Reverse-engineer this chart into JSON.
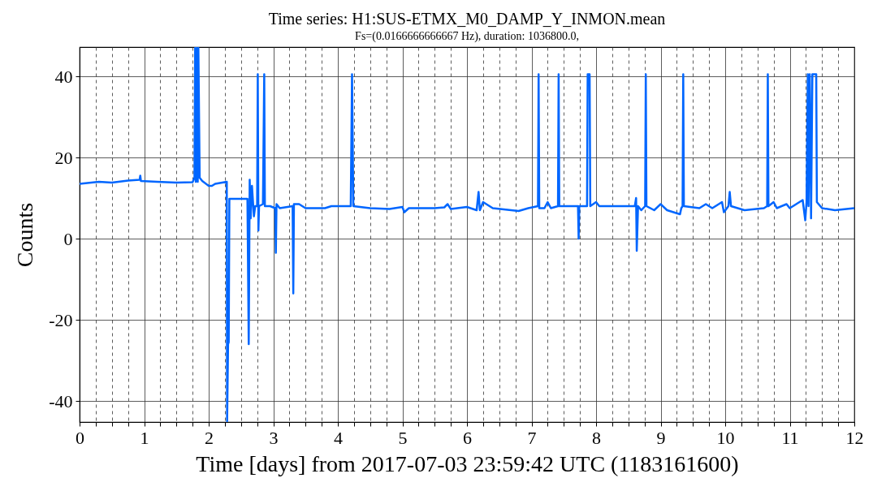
{
  "chart_data": {
    "type": "line",
    "title": "Time series: H1:SUS-ETMX_M0_DAMP_Y_INMON.mean",
    "subtitle": "Fs=(0.0166666666667 Hz), duration: 1036800.0,",
    "xlabel": "Time [days] from 2017-07-03 23:59:42 UTC (1183161600)",
    "ylabel": "Counts",
    "xlim": [
      0,
      12
    ],
    "ylim": [
      -45.2,
      47.2
    ],
    "xticks": [
      0,
      {
        "value": 0.25,
        "label": null
      },
      {
        "value": 0.5,
        "label": null
      },
      {
        "value": 0.75,
        "label": null
      },
      1,
      {
        "value": 1.25,
        "label": null
      },
      {
        "value": 1.5,
        "label": null
      },
      {
        "value": 1.75,
        "label": null
      },
      2,
      {
        "value": 2.25,
        "label": null
      },
      {
        "value": 2.5,
        "label": null
      },
      {
        "value": 2.75,
        "label": null
      },
      3,
      {
        "value": 3.25,
        "label": null
      },
      {
        "value": 3.5,
        "label": null
      },
      {
        "value": 3.75,
        "label": null
      },
      4,
      {
        "value": 4.25,
        "label": null
      },
      {
        "value": 4.5,
        "label": null
      },
      {
        "value": 4.75,
        "label": null
      },
      5,
      {
        "value": 5.25,
        "label": null
      },
      {
        "value": 5.5,
        "label": null
      },
      {
        "value": 5.75,
        "label": null
      },
      6,
      {
        "value": 6.25,
        "label": null
      },
      {
        "value": 6.5,
        "label": null
      },
      {
        "value": 6.75,
        "label": null
      },
      7,
      {
        "value": 7.25,
        "label": null
      },
      {
        "value": 7.5,
        "label": null
      },
      {
        "value": 7.75,
        "label": null
      },
      8,
      {
        "value": 8.25,
        "label": null
      },
      {
        "value": 8.5,
        "label": null
      },
      {
        "value": 8.75,
        "label": null
      },
      9,
      {
        "value": 9.25,
        "label": null
      },
      {
        "value": 9.5,
        "label": null
      },
      {
        "value": 9.75,
        "label": null
      },
      10,
      {
        "value": 10.25,
        "label": null
      },
      {
        "value": 10.5,
        "label": null
      },
      {
        "value": 10.75,
        "label": null
      },
      11,
      {
        "value": 11.25,
        "label": null
      },
      {
        "value": 11.5,
        "label": null
      },
      {
        "value": 11.75,
        "label": null
      },
      12
    ],
    "yticks": [
      -40,
      -20,
      0,
      20,
      40
    ],
    "grid": true,
    "series": [
      {
        "color": "#0066ff",
        "x": [
          0,
          0.3,
          0.5,
          0.75,
          0.93,
          0.94,
          0.95,
          1.2,
          1.5,
          1.75,
          1.78,
          1.79,
          1.8,
          1.81,
          1.83,
          1.84,
          1.86,
          1.9,
          2.0,
          2.05,
          2.1,
          2.28,
          2.285,
          2.3,
          2.31,
          2.32,
          2.6,
          2.62,
          2.635,
          2.65,
          2.67,
          2.7,
          2.72,
          2.75,
          2.76,
          2.77,
          2.78,
          2.84,
          2.86,
          2.87,
          2.95,
          3.03,
          3.04,
          3.05,
          3.1,
          3.3,
          3.31,
          3.32,
          3.4,
          3.5,
          3.8,
          3.9,
          4.2,
          4.22,
          4.24,
          4.5,
          4.8,
          5.0,
          5.03,
          5.1,
          5.5,
          5.65,
          5.7,
          5.75,
          6.0,
          6.15,
          6.18,
          6.2,
          6.25,
          6.3,
          6.4,
          6.8,
          6.95,
          7.1,
          7.11,
          7.12,
          7.2,
          7.25,
          7.3,
          7.41,
          7.42,
          7.43,
          7.5,
          7.72,
          7.73,
          7.74,
          7.86,
          7.87,
          7.9,
          7.91,
          8.0,
          8.05,
          8.5,
          8.6,
          8.62,
          8.63,
          8.65,
          8.7,
          8.76,
          8.77,
          8.78,
          8.9,
          9.0,
          9.1,
          9.2,
          9.3,
          9.32,
          9.34,
          9.35,
          9.36,
          9.6,
          9.7,
          9.8,
          9.95,
          9.98,
          10.05,
          10.07,
          10.09,
          10.3,
          10.6,
          10.65,
          10.66,
          10.67,
          10.75,
          10.8,
          10.95,
          11.0,
          11.2,
          11.24,
          11.26,
          11.28,
          11.29,
          11.31,
          11.33,
          11.35,
          11.41,
          11.42,
          11.5,
          11.7,
          12
        ],
        "values": [
          13.5,
          14,
          13.8,
          14.3,
          14.5,
          15.5,
          14.2,
          14,
          13.8,
          13.9,
          15,
          47,
          14,
          47,
          14,
          47,
          15,
          14.2,
          13,
          13,
          13.5,
          14,
          -45,
          -26,
          -25.5,
          9.8,
          9.8,
          -26,
          14.5,
          5,
          13,
          5.5,
          8,
          8,
          40.5,
          2,
          8,
          8.5,
          40.5,
          8,
          8,
          7.5,
          -3.5,
          8.5,
          7.5,
          8,
          -13.5,
          8.5,
          8.5,
          7.5,
          7.5,
          8,
          8,
          40.5,
          8,
          7.5,
          7.3,
          7.8,
          6.5,
          7.5,
          7.5,
          7.7,
          8.5,
          7.3,
          7.8,
          7,
          11.5,
          7,
          9,
          8.5,
          7.5,
          6.8,
          7.5,
          8,
          40.5,
          7.5,
          7.5,
          9,
          7.5,
          8,
          40.5,
          8,
          8,
          8,
          0,
          8,
          8,
          40.5,
          40.5,
          8,
          9,
          8,
          8,
          8,
          10,
          -3,
          8,
          7,
          8,
          40.5,
          8,
          7,
          8.5,
          7,
          6.5,
          6,
          7.5,
          8,
          40.5,
          8,
          7.5,
          8.5,
          7.5,
          9,
          6.5,
          8,
          11.5,
          8,
          7,
          7.5,
          8,
          40.5,
          8,
          9,
          7.5,
          8.5,
          7.5,
          9.5,
          4.5,
          9,
          40.5,
          8,
          40.5,
          5,
          40.5,
          40.5,
          9,
          7.5,
          7,
          7.5
        ]
      }
    ]
  }
}
